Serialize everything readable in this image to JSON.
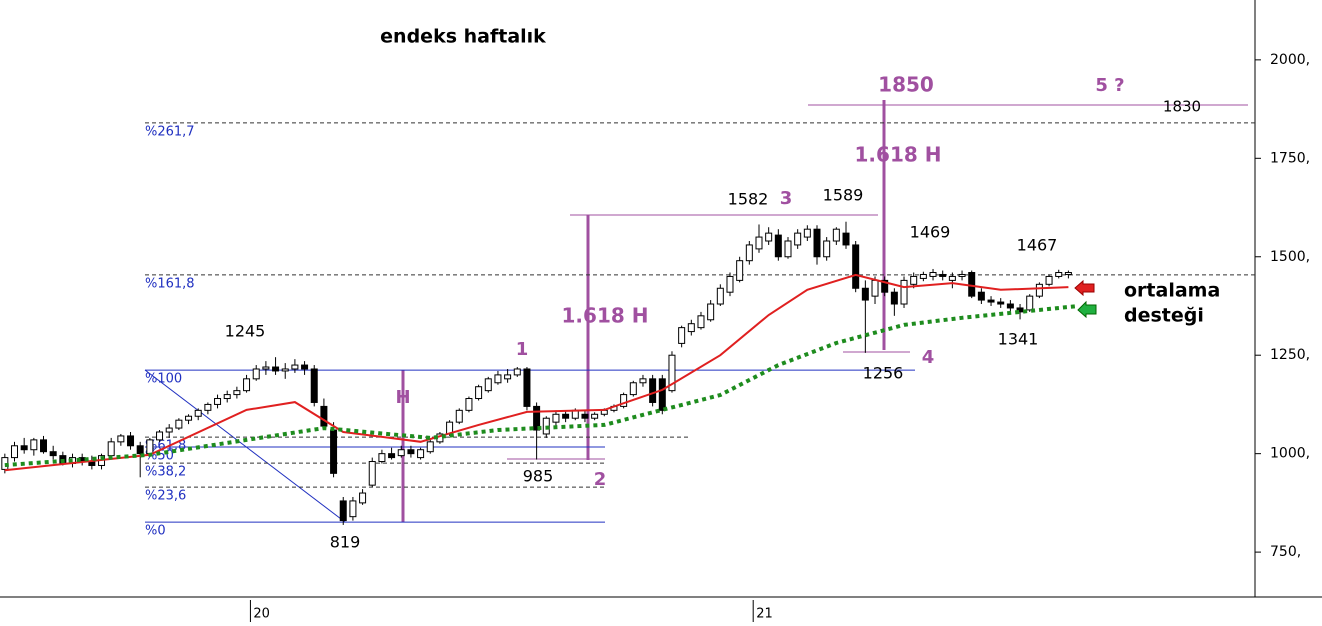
{
  "chart_data": {
    "type": "candlestick",
    "title": "endeks haftalık",
    "xlim": [
      -0.5,
      129.3
    ],
    "xticks": [
      {
        "value": 25.4,
        "label": "20"
      },
      {
        "value": 77.4,
        "label": "21"
      }
    ],
    "ylim": [
      636,
      2152
    ],
    "yticks": [
      {
        "value": 750,
        "label": "750,"
      },
      {
        "value": 1000,
        "label": "1000,"
      },
      {
        "value": 1250,
        "label": "1250,"
      },
      {
        "value": 1500,
        "label": "1500,"
      },
      {
        "value": 1750,
        "label": "1750,"
      },
      {
        "value": 2000,
        "label": "2000,"
      }
    ],
    "up_color": "#ffffff",
    "down_color": "#000000",
    "ohlc": [
      [
        960,
        1000,
        950,
        990
      ],
      [
        990,
        1030,
        980,
        1020
      ],
      [
        1020,
        1040,
        1000,
        1010
      ],
      [
        1010,
        1040,
        995,
        1035
      ],
      [
        1035,
        1045,
        1000,
        1005
      ],
      [
        1005,
        1020,
        985,
        995
      ],
      [
        995,
        1005,
        970,
        975
      ],
      [
        975,
        1000,
        965,
        990
      ],
      [
        990,
        1000,
        970,
        980
      ],
      [
        980,
        995,
        960,
        970
      ],
      [
        970,
        1000,
        960,
        995
      ],
      [
        995,
        1040,
        990,
        1030
      ],
      [
        1030,
        1050,
        1020,
        1045
      ],
      [
        1045,
        1055,
        1010,
        1020
      ],
      [
        1020,
        1030,
        940,
        1000
      ],
      [
        1000,
        1040,
        995,
        1035
      ],
      [
        1035,
        1060,
        1030,
        1055
      ],
      [
        1055,
        1075,
        1040,
        1065
      ],
      [
        1065,
        1090,
        1060,
        1085
      ],
      [
        1085,
        1100,
        1075,
        1095
      ],
      [
        1095,
        1115,
        1085,
        1110
      ],
      [
        1110,
        1130,
        1100,
        1125
      ],
      [
        1125,
        1150,
        1115,
        1140
      ],
      [
        1140,
        1160,
        1130,
        1150
      ],
      [
        1150,
        1170,
        1140,
        1160
      ],
      [
        1160,
        1200,
        1155,
        1190
      ],
      [
        1190,
        1225,
        1185,
        1215
      ],
      [
        1215,
        1235,
        1200,
        1220
      ],
      [
        1220,
        1245,
        1200,
        1210
      ],
      [
        1210,
        1230,
        1190,
        1215
      ],
      [
        1215,
        1240,
        1205,
        1225
      ],
      [
        1225,
        1235,
        1200,
        1215
      ],
      [
        1215,
        1225,
        1120,
        1130
      ],
      [
        1120,
        1140,
        1060,
        1070
      ],
      [
        1060,
        1080,
        940,
        950
      ],
      [
        880,
        890,
        819,
        830
      ],
      [
        840,
        890,
        830,
        880
      ],
      [
        875,
        910,
        870,
        900
      ],
      [
        920,
        990,
        915,
        980
      ],
      [
        980,
        1010,
        975,
        1000
      ],
      [
        1000,
        1015,
        985,
        990
      ],
      [
        995,
        1020,
        990,
        1010
      ],
      [
        1010,
        1020,
        990,
        1000
      ],
      [
        990,
        1015,
        985,
        1010
      ],
      [
        1005,
        1035,
        1000,
        1030
      ],
      [
        1030,
        1055,
        1025,
        1050
      ],
      [
        1050,
        1085,
        1045,
        1080
      ],
      [
        1080,
        1115,
        1075,
        1110
      ],
      [
        1110,
        1145,
        1105,
        1140
      ],
      [
        1140,
        1175,
        1135,
        1170
      ],
      [
        1160,
        1195,
        1155,
        1190
      ],
      [
        1180,
        1210,
        1175,
        1200
      ],
      [
        1190,
        1215,
        1180,
        1200
      ],
      [
        1200,
        1220,
        1195,
        1215
      ],
      [
        1215,
        1220,
        1110,
        1120
      ],
      [
        1120,
        1130,
        985,
        1060
      ],
      [
        1050,
        1095,
        1040,
        1090
      ],
      [
        1080,
        1110,
        1070,
        1100
      ],
      [
        1100,
        1110,
        1080,
        1090
      ],
      [
        1090,
        1115,
        1085,
        1110
      ],
      [
        1100,
        1110,
        1080,
        1090
      ],
      [
        1090,
        1105,
        1085,
        1100
      ],
      [
        1100,
        1115,
        1095,
        1110
      ],
      [
        1110,
        1125,
        1105,
        1120
      ],
      [
        1120,
        1155,
        1115,
        1150
      ],
      [
        1150,
        1185,
        1145,
        1180
      ],
      [
        1180,
        1200,
        1170,
        1190
      ],
      [
        1190,
        1200,
        1120,
        1130
      ],
      [
        1190,
        1200,
        1100,
        1110
      ],
      [
        1160,
        1260,
        1155,
        1250
      ],
      [
        1280,
        1325,
        1270,
        1320
      ],
      [
        1310,
        1340,
        1300,
        1330
      ],
      [
        1320,
        1360,
        1315,
        1350
      ],
      [
        1340,
        1390,
        1335,
        1380
      ],
      [
        1380,
        1430,
        1375,
        1420
      ],
      [
        1410,
        1460,
        1400,
        1450
      ],
      [
        1440,
        1500,
        1435,
        1490
      ],
      [
        1490,
        1540,
        1480,
        1530
      ],
      [
        1520,
        1582,
        1510,
        1550
      ],
      [
        1540,
        1575,
        1530,
        1560
      ],
      [
        1555,
        1570,
        1490,
        1500
      ],
      [
        1500,
        1550,
        1495,
        1540
      ],
      [
        1530,
        1570,
        1520,
        1560
      ],
      [
        1550,
        1580,
        1540,
        1570
      ],
      [
        1570,
        1580,
        1480,
        1500
      ],
      [
        1500,
        1550,
        1490,
        1540
      ],
      [
        1540,
        1575,
        1530,
        1570
      ],
      [
        1560,
        1589,
        1520,
        1530
      ],
      [
        1530,
        1540,
        1410,
        1420
      ],
      [
        1420,
        1440,
        1256,
        1390
      ],
      [
        1400,
        1450,
        1380,
        1440
      ],
      [
        1440,
        1450,
        1400,
        1410
      ],
      [
        1410,
        1420,
        1350,
        1380
      ],
      [
        1380,
        1450,
        1370,
        1440
      ],
      [
        1430,
        1460,
        1420,
        1450
      ],
      [
        1445,
        1462,
        1438,
        1455
      ],
      [
        1450,
        1469,
        1440,
        1460
      ],
      [
        1455,
        1465,
        1440,
        1450
      ],
      [
        1440,
        1460,
        1420,
        1450
      ],
      [
        1450,
        1465,
        1440,
        1455
      ],
      [
        1460,
        1465,
        1395,
        1400
      ],
      [
        1410,
        1420,
        1380,
        1390
      ],
      [
        1390,
        1400,
        1375,
        1385
      ],
      [
        1385,
        1395,
        1370,
        1380
      ],
      [
        1380,
        1390,
        1360,
        1370
      ],
      [
        1370,
        1380,
        1341,
        1360
      ],
      [
        1365,
        1405,
        1360,
        1400
      ],
      [
        1400,
        1435,
        1395,
        1430
      ],
      [
        1430,
        1455,
        1425,
        1450
      ],
      [
        1450,
        1467,
        1445,
        1460
      ],
      [
        1455,
        1465,
        1445,
        1460
      ]
    ],
    "series": [
      {
        "color": "#e02020",
        "style": "solid",
        "x": [
          0,
          15,
          25,
          30,
          35,
          43,
          49,
          54,
          62,
          68,
          74,
          79,
          83,
          88,
          93,
          98,
          103,
          110
        ],
        "values": [
          958,
          997,
          1111,
          1131,
          1055,
          1030,
          1073,
          1106,
          1111,
          1162,
          1250,
          1352,
          1416,
          1454,
          1423,
          1433,
          1416,
          1423
        ]
      },
      {
        "color": "#1e8c1e",
        "style": "dotted",
        "x": [
          0,
          15,
          25,
          33,
          44,
          51,
          62,
          68,
          74,
          80,
          86,
          93,
          99,
          105,
          111
        ],
        "values": [
          971,
          997,
          1035,
          1065,
          1040,
          1060,
          1073,
          1111,
          1149,
          1225,
          1281,
          1327,
          1345,
          1360,
          1375
        ]
      }
    ],
    "fib_levels": [
      {
        "value": 1840,
        "label": "%261,7"
      },
      {
        "value": 1454,
        "label": "%161,8"
      },
      {
        "value": 1212,
        "label": "%100"
      },
      {
        "value": 1042,
        "label": "%61,8"
      },
      {
        "value": 1017,
        "label": "%50"
      },
      {
        "value": 976,
        "label": "%38,2"
      },
      {
        "value": 915,
        "label": "%23,6"
      },
      {
        "value": 826,
        "label": "%0"
      }
    ],
    "annotations": [
      "1850",
      "5 ?",
      "1830",
      "1.618 H",
      "1582",
      "3",
      "1589",
      "1469",
      "1467",
      "1245",
      "1",
      "H",
      "1.618 H",
      "985",
      "2",
      "819",
      "1256",
      "4",
      "1341",
      "ortalama",
      "desteği"
    ]
  }
}
